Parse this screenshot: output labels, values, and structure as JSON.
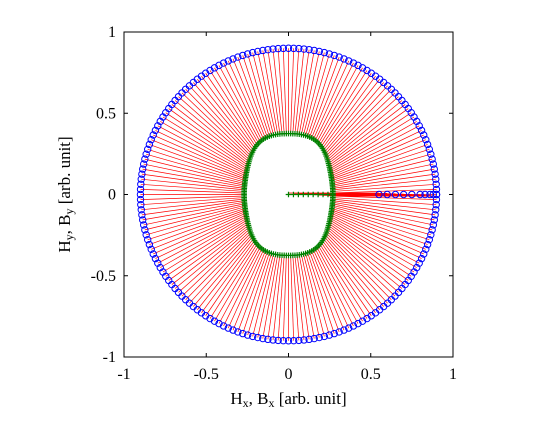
{
  "chart_data": {
    "type": "scatter",
    "title": "",
    "xlabel": {
      "parts": [
        [
          "H",
          ""
        ],
        [
          "x",
          "sub"
        ],
        [
          ", B",
          ""
        ],
        [
          "x",
          "sub"
        ],
        [
          " [arb. unit]",
          ""
        ]
      ]
    },
    "ylabel": {
      "parts": [
        [
          "H",
          ""
        ],
        [
          "y",
          "sub"
        ],
        [
          ", B",
          ""
        ],
        [
          "y",
          "sub"
        ],
        [
          " [arb. unit]",
          ""
        ]
      ]
    },
    "xlim": [
      -1,
      1
    ],
    "ylim": [
      -1,
      1
    ],
    "xticks": [
      -1,
      -0.5,
      0,
      0.5,
      1
    ],
    "yticks": [
      -1,
      -0.5,
      0,
      0.5,
      1
    ],
    "xtick_labels": [
      "-1",
      "-0.5",
      "0",
      "0.5",
      "1"
    ],
    "ytick_labels": [
      "-1",
      "-0.5",
      "0",
      "0.5",
      "1"
    ],
    "grid": false,
    "box": true,
    "series": [
      {
        "kind": "applied-field-circle",
        "marker": "open-circle",
        "color": "#0000ff",
        "radius": 0.9,
        "n_points": 180,
        "extra_points_along_positive_x": [
          0.55,
          0.6,
          0.65,
          0.7,
          0.75,
          0.8,
          0.83,
          0.86,
          0.88,
          0.9
        ]
      },
      {
        "kind": "response-curve",
        "marker": "plus",
        "color": "#008000",
        "shape": "superellipse",
        "half_width_x": 0.27,
        "half_width_y": 0.375,
        "waviness": 0.12,
        "n_points": 180,
        "extra_points_along_positive_x": [
          0.0,
          0.03,
          0.06,
          0.09,
          0.12,
          0.15,
          0.18,
          0.21,
          0.24,
          0.27
        ]
      },
      {
        "kind": "connecting-lines",
        "color": "#ff0000",
        "connects": "applied-field-circle to response-curve"
      }
    ]
  }
}
